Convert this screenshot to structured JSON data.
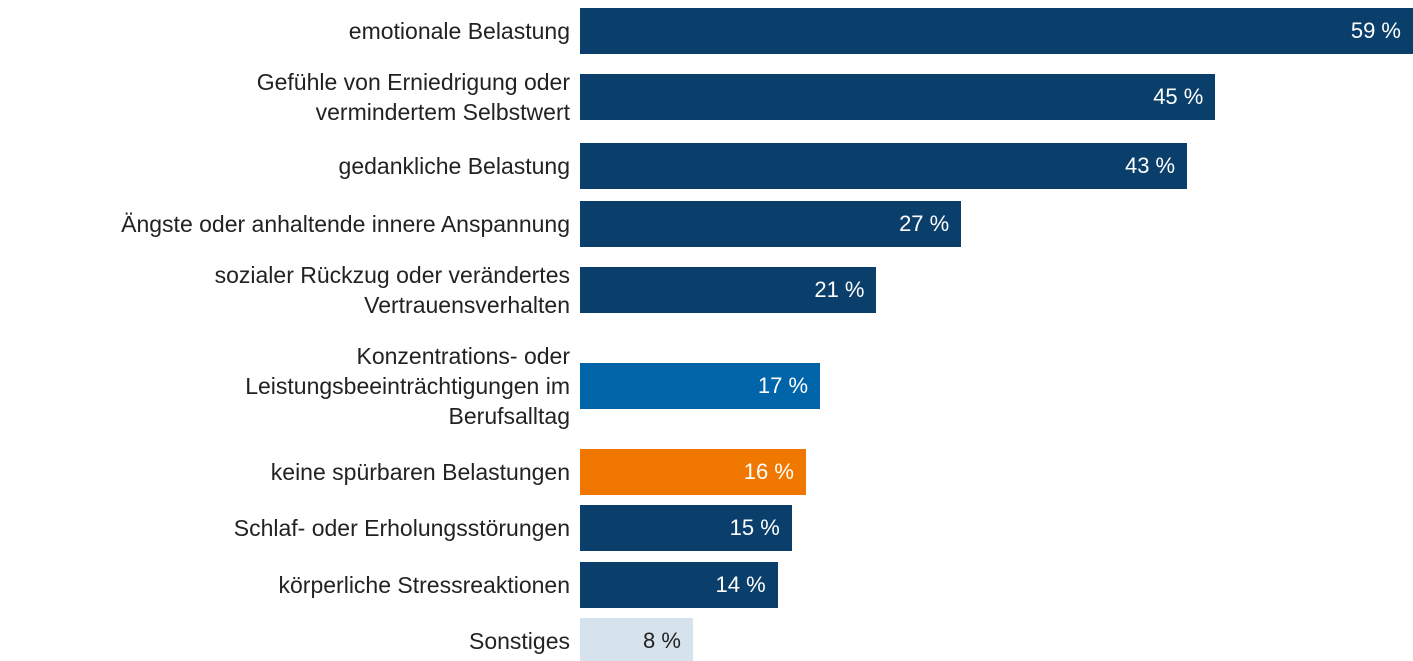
{
  "chart_data": {
    "type": "bar",
    "orientation": "horizontal",
    "categories": [
      "emotionale Belastung",
      "Gefühle von Erniedrigung oder\nvermindertem Selbstwert",
      "gedankliche Belastung",
      "Ängste oder anhaltende innere Anspannung",
      "sozialer Rückzug oder verändertes\nVertrauensverhalten",
      "Konzentrations- oder\nLeistungsbeeinträchtigungen im\nBerufsalltag",
      "keine spürbaren Belastungen",
      "Schlaf- oder Erholungsstörungen",
      "körperliche Stressreaktionen",
      "Sonstiges"
    ],
    "values": [
      59,
      45,
      43,
      27,
      21,
      17,
      16,
      15,
      14,
      8
    ],
    "value_labels": [
      "59 %",
      "45 %",
      "43 %",
      "27 %",
      "21 %",
      "17 %",
      "16 %",
      "15 %",
      "14 %",
      "8 %"
    ],
    "colors": [
      "#0b3f6b",
      "#0b3f6b",
      "#0b3f6b",
      "#0b3f6b",
      "#0b3f6b",
      "#0064a8",
      "#f07800",
      "#0b3f6b",
      "#0b3f6b",
      "#d6e2ec"
    ],
    "label_colors": [
      "#ffffff",
      "#ffffff",
      "#ffffff",
      "#ffffff",
      "#ffffff",
      "#ffffff",
      "#ffffff",
      "#ffffff",
      "#ffffff",
      "#222222"
    ],
    "xlim": [
      0,
      59
    ]
  }
}
